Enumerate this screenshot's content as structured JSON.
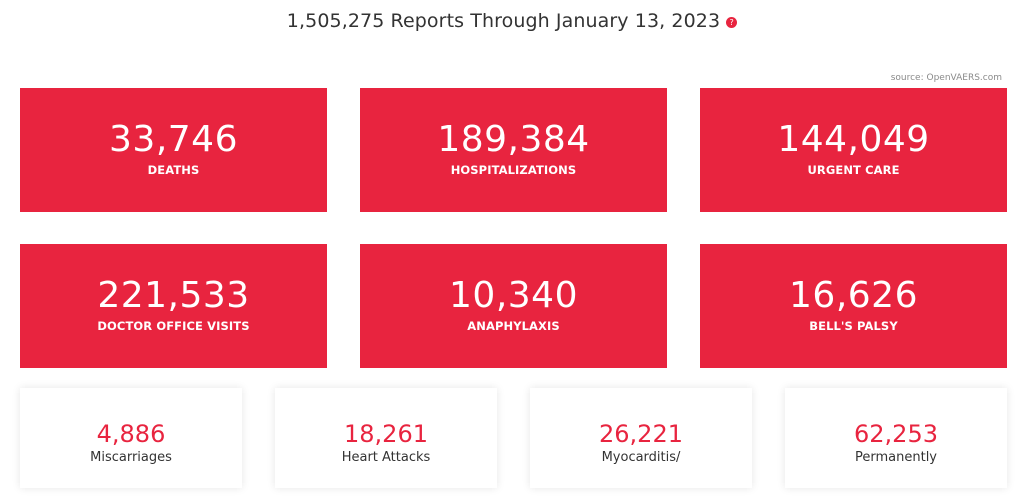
{
  "header": {
    "title": "1,505,275 Reports Through January 13, 2023",
    "info_icon": "?"
  },
  "source_note": "source: OpenVAERS.com",
  "colors": {
    "accent": "#e8243f",
    "text": "#333333",
    "muted": "#8a8a8a"
  },
  "big_stats": [
    {
      "value": "33,746",
      "label": "DEATHS"
    },
    {
      "value": "189,384",
      "label": "HOSPITALIZATIONS"
    },
    {
      "value": "144,049",
      "label": "URGENT CARE"
    },
    {
      "value": "221,533",
      "label": "DOCTOR OFFICE VISITS"
    },
    {
      "value": "10,340",
      "label": "ANAPHYLAXIS"
    },
    {
      "value": "16,626",
      "label": "BELL'S PALSY"
    }
  ],
  "small_stats": [
    {
      "value": "4,886",
      "label": "Miscarriages"
    },
    {
      "value": "18,261",
      "label": "Heart Attacks"
    },
    {
      "value": "26,221",
      "label": "Myocarditis/"
    },
    {
      "value": "62,253",
      "label": "Permanently"
    }
  ]
}
